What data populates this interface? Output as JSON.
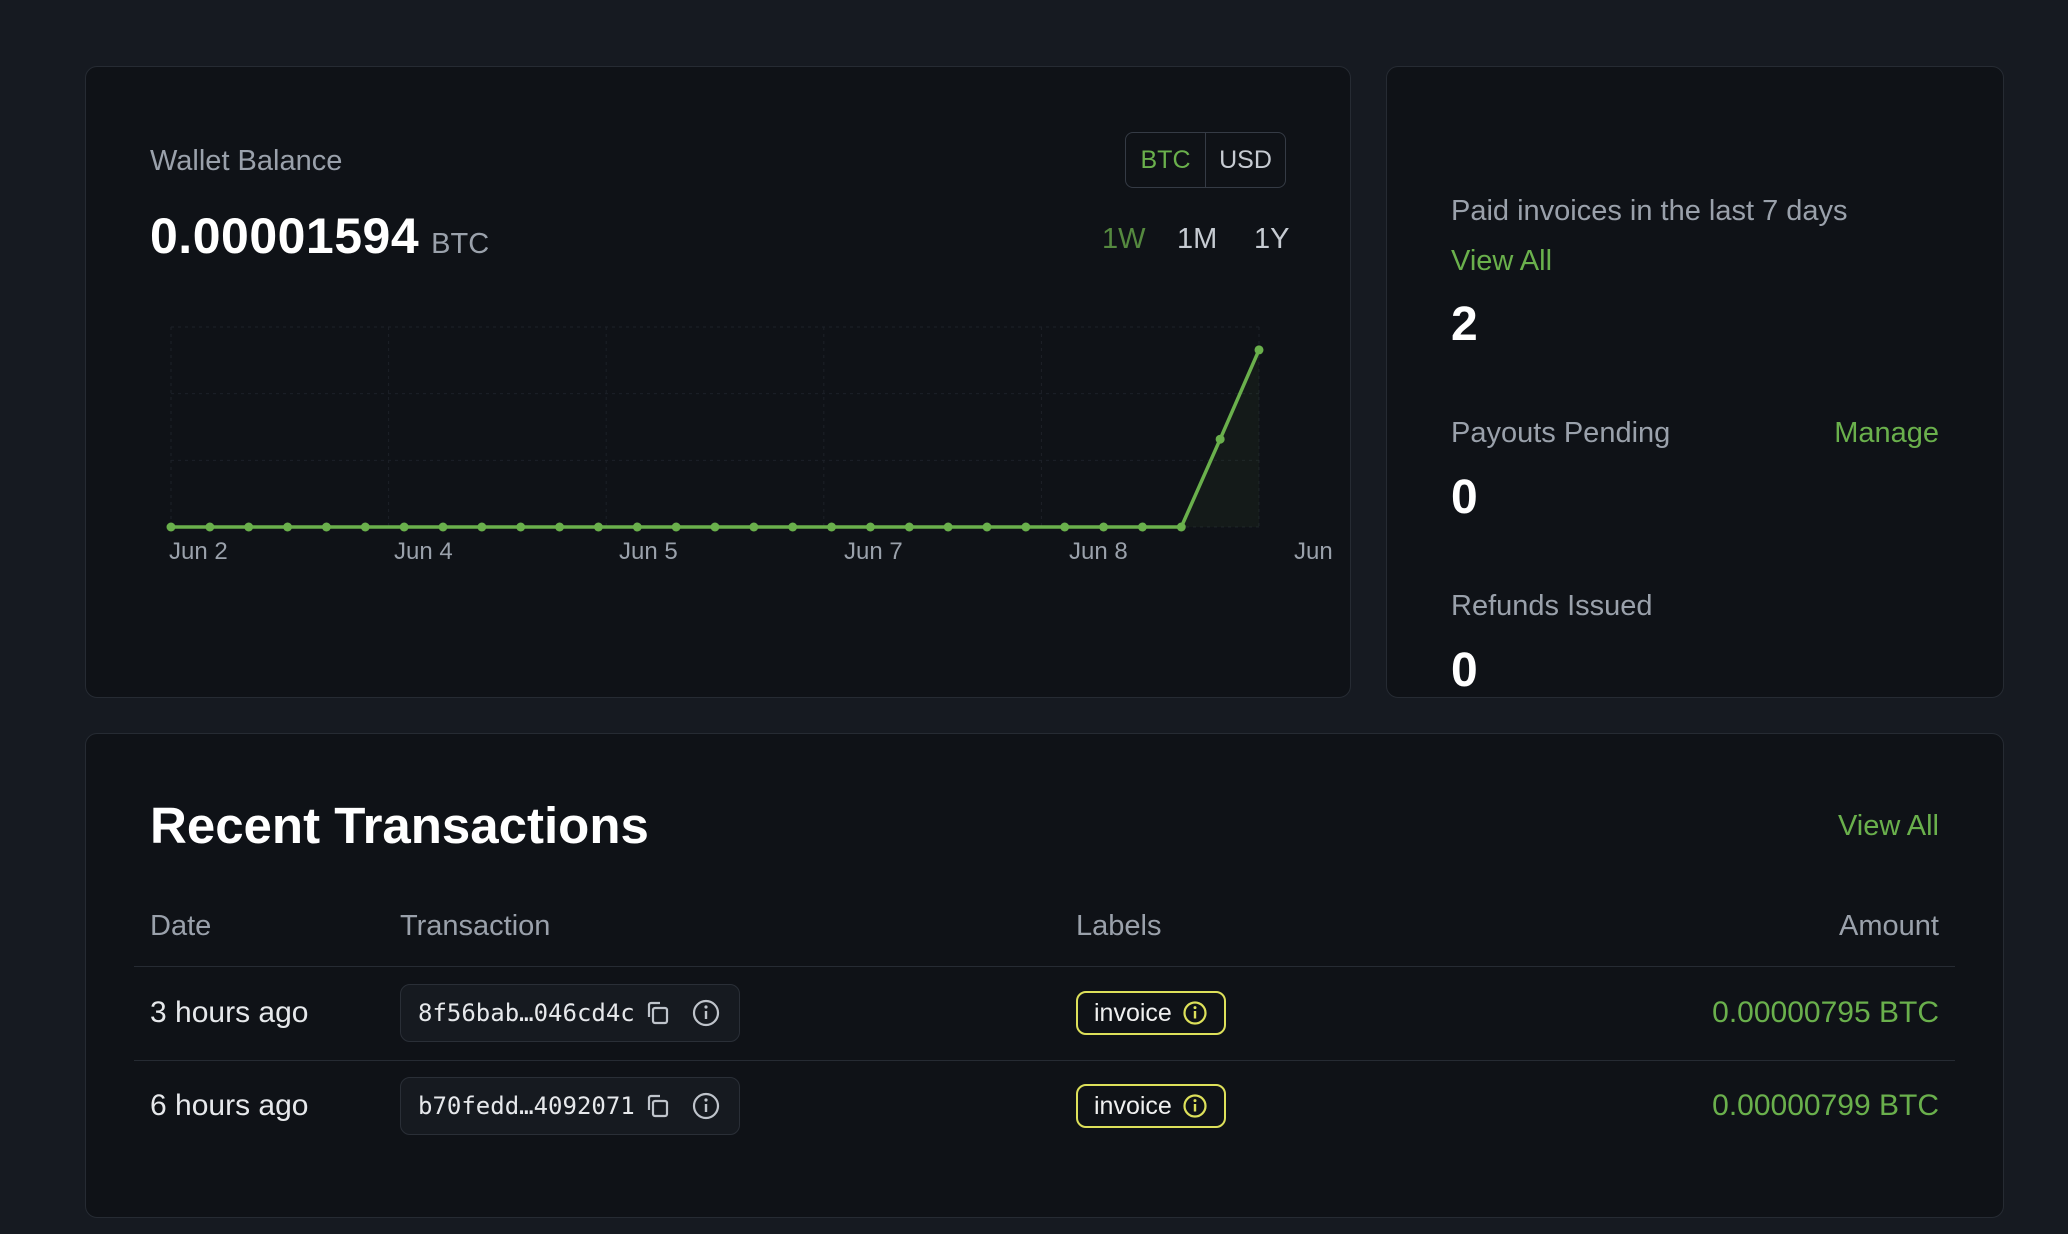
{
  "wallet": {
    "title": "Wallet Balance",
    "balance": "0.00001594",
    "unit": "BTC",
    "currency_options": [
      "BTC",
      "USD"
    ],
    "currency_selected": "BTC",
    "ranges": [
      "1W",
      "1M",
      "1Y"
    ],
    "range_selected": "1W"
  },
  "chart_data": {
    "type": "line",
    "x_tick_labels": [
      "Jun 2",
      "Jun 4",
      "Jun 5",
      "Jun 7",
      "Jun 8",
      "Jun"
    ],
    "y_units": "BTC",
    "ylim": [
      0,
      1.8e-05
    ],
    "grid": true,
    "series": [
      {
        "color": "#6ab04c",
        "values": [
          0,
          0,
          0,
          0,
          0,
          0,
          0,
          0,
          0,
          0,
          0,
          0,
          0,
          0,
          0,
          0,
          0,
          0,
          0,
          0,
          0,
          0,
          0,
          0,
          0,
          0,
          0,
          7.9e-06,
          1.594e-05
        ]
      }
    ]
  },
  "stats": {
    "paid_title": "Paid invoices in the last 7 days",
    "paid_link": "View All",
    "paid_value": "2",
    "payouts_title": "Payouts Pending",
    "payouts_link": "Manage",
    "payouts_value": "0",
    "refunds_title": "Refunds Issued",
    "refunds_value": "0"
  },
  "transactions": {
    "title": "Recent Transactions",
    "view_all": "View All",
    "headers": {
      "date": "Date",
      "transaction": "Transaction",
      "labels": "Labels",
      "amount": "Amount"
    },
    "rows": [
      {
        "date": "3 hours ago",
        "hash": "8f56bab…046cd4c",
        "label": "invoice",
        "amount": "0.00000795 BTC"
      },
      {
        "date": "6 hours ago",
        "hash": "b70fedd…4092071",
        "label": "invoice",
        "amount": "0.00000799 BTC"
      }
    ]
  },
  "colors": {
    "accent": "#6ab04c",
    "label_border": "#dde05a",
    "background": "#161a21",
    "card": "#0f1217"
  },
  "icons": {
    "copy": "copy-icon",
    "info": "info-icon"
  }
}
